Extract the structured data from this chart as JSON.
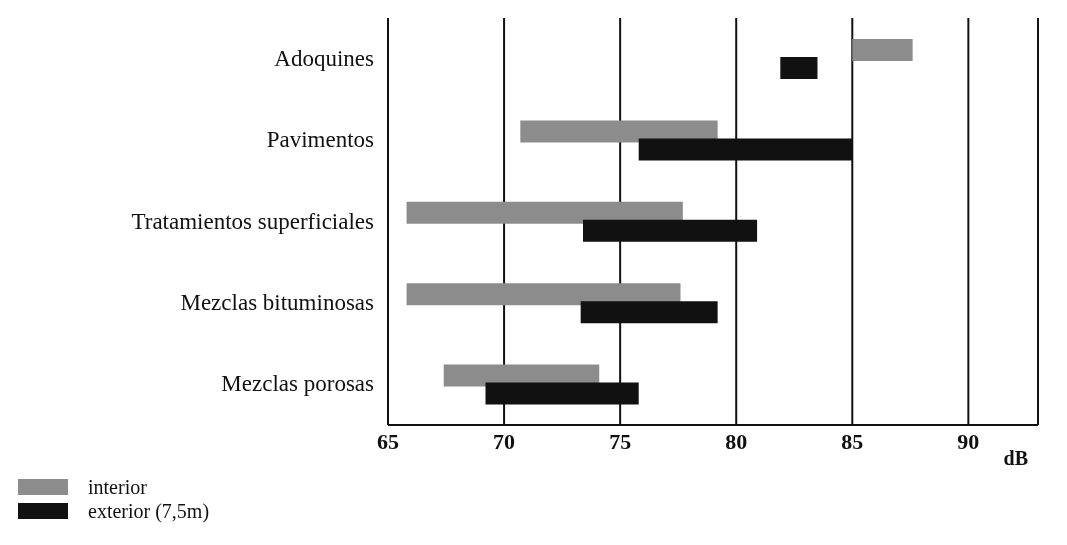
{
  "chart_data": {
    "type": "bar",
    "orientation": "horizontal",
    "xlabel": "dB",
    "categories": [
      "Adoquines",
      "Pavimentos",
      "Tratamientos superficiales",
      "Mezclas bituminosas",
      "Mezclas porosas"
    ],
    "series": [
      {
        "name": "interior",
        "color": "#8c8c8c",
        "base": [
          85,
          70.7,
          65.8,
          65.8,
          67.4
        ],
        "values": [
          2.6,
          8.5,
          11.9,
          11.8,
          6.7
        ]
      },
      {
        "name": "exterior (7,5m)",
        "color": "#111111",
        "base": [
          81.9,
          75.8,
          73.4,
          73.3,
          69.2
        ],
        "values": [
          1.6,
          9.2,
          7.5,
          5.9,
          6.6
        ]
      }
    ],
    "xlim": [
      65,
      93
    ],
    "xticks": [
      65,
      70,
      75,
      80,
      85,
      90
    ],
    "grid": "x",
    "legend": "bottom left"
  }
}
